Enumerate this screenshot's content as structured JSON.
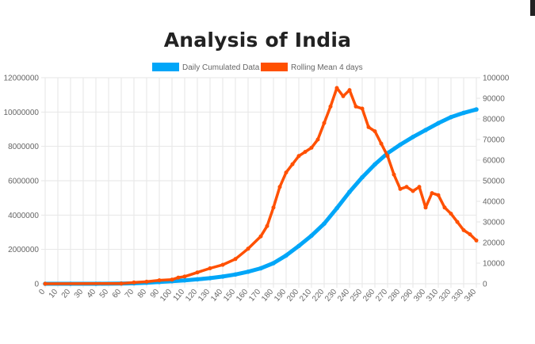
{
  "page": {
    "title": "Analysis of India"
  },
  "colors": {
    "cumulative": "#00a6f8",
    "rolling": "#ff5000",
    "grid": "#e6e6e6",
    "tick_text": "#666666",
    "corner_block": "#222222"
  },
  "chart_data": {
    "type": "line",
    "title": "Analysis of India",
    "legend_position": "top",
    "grid": true,
    "x_ticks": [
      0,
      10,
      20,
      30,
      40,
      50,
      60,
      70,
      80,
      90,
      100,
      110,
      120,
      130,
      140,
      150,
      160,
      170,
      180,
      190,
      200,
      210,
      220,
      230,
      240,
      250,
      260,
      270,
      280,
      290,
      300,
      310,
      320,
      330,
      340
    ],
    "xlim": [
      0,
      340
    ],
    "y_left": {
      "lim": [
        0,
        12000000
      ],
      "ticks": [
        0,
        2000000,
        4000000,
        6000000,
        8000000,
        10000000,
        12000000
      ]
    },
    "y_right": {
      "lim": [
        0,
        100000
      ],
      "ticks": [
        0,
        10000,
        20000,
        30000,
        40000,
        50000,
        60000,
        70000,
        80000,
        90000,
        100000
      ]
    },
    "series": [
      {
        "name": "Daily Cumulated Data",
        "axis": "left",
        "x": [
          0,
          20,
          40,
          60,
          70,
          80,
          90,
          100,
          110,
          120,
          130,
          140,
          150,
          160,
          170,
          180,
          190,
          200,
          210,
          220,
          230,
          240,
          250,
          260,
          270,
          280,
          290,
          300,
          310,
          320,
          330,
          340
        ],
        "y": [
          0,
          500,
          2000,
          15000,
          30000,
          60000,
          100000,
          150000,
          200000,
          260000,
          330000,
          420000,
          540000,
          700000,
          900000,
          1200000,
          1650000,
          2200000,
          2800000,
          3500000,
          4400000,
          5350000,
          6200000,
          6950000,
          7600000,
          8100000,
          8550000,
          8950000,
          9350000,
          9700000,
          9950000,
          10150000
        ]
      },
      {
        "name": "Rolling Mean 4 days",
        "axis": "right",
        "x": [
          0,
          60,
          70,
          80,
          90,
          100,
          105,
          110,
          120,
          130,
          140,
          150,
          160,
          170,
          175,
          180,
          185,
          190,
          195,
          200,
          205,
          210,
          215,
          220,
          225,
          230,
          235,
          240,
          245,
          250,
          255,
          260,
          265,
          270,
          275,
          280,
          285,
          290,
          295,
          300,
          305,
          310,
          315,
          320,
          325,
          330,
          335,
          340
        ],
        "y": [
          0,
          100,
          600,
          1000,
          1700,
          2000,
          3000,
          3500,
          5500,
          7500,
          9200,
          12000,
          17000,
          23000,
          28000,
          37000,
          47000,
          54000,
          58000,
          62000,
          64000,
          66000,
          70000,
          78000,
          86000,
          95000,
          91000,
          94000,
          86000,
          85000,
          76000,
          74000,
          68000,
          62000,
          53000,
          46000,
          47000,
          45000,
          47000,
          37000,
          44000,
          43000,
          37000,
          34000,
          30000,
          26000,
          24000,
          21000
        ]
      }
    ]
  }
}
